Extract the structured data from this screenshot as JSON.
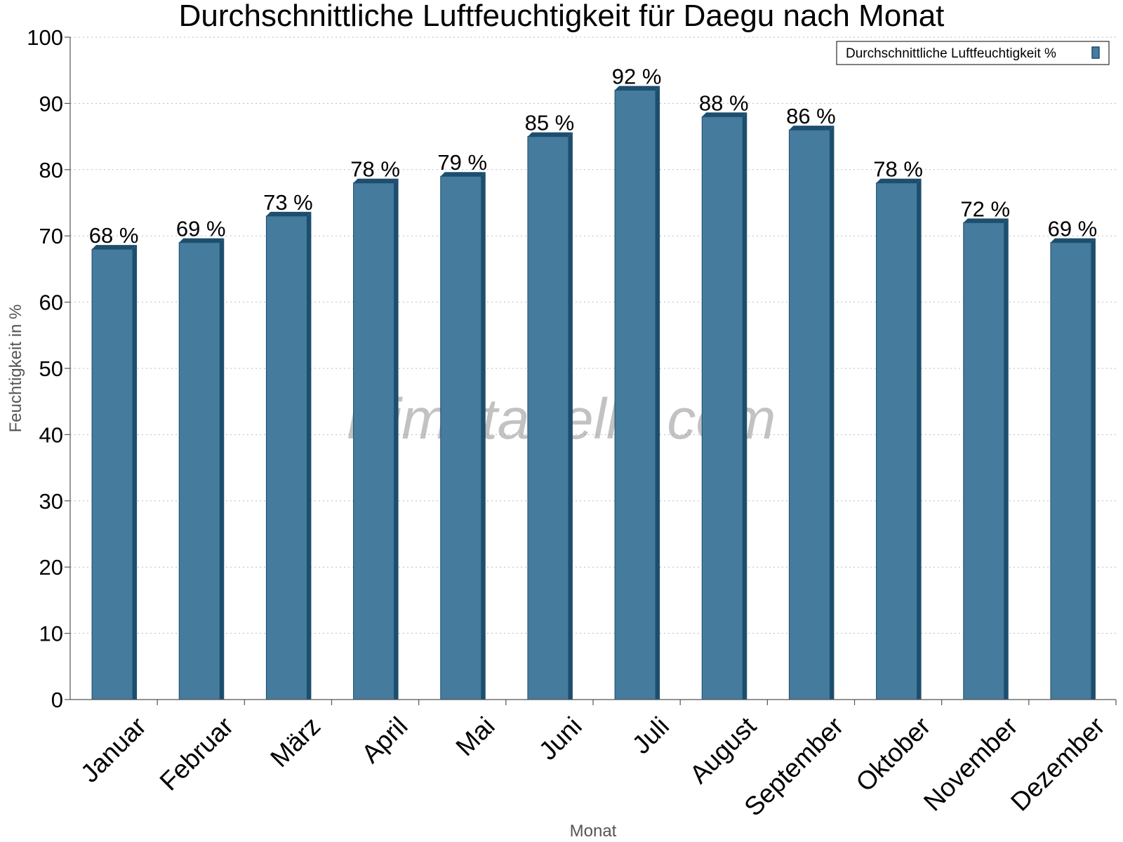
{
  "chart_data": {
    "type": "bar",
    "title": "Durchschnittliche Luftfeuchtigkeit für Daegu nach Monat",
    "xlabel": "Monat",
    "ylabel": "Feuchtigkeit in %",
    "ylim": [
      0,
      100
    ],
    "yticks": [
      0,
      10,
      20,
      30,
      40,
      50,
      60,
      70,
      80,
      90,
      100
    ],
    "grid": true,
    "legend_position": "top-right",
    "categories": [
      "Januar",
      "Februar",
      "März",
      "April",
      "Mai",
      "Juni",
      "Juli",
      "August",
      "September",
      "Oktober",
      "November",
      "Dezember"
    ],
    "series": [
      {
        "name": "Durchschnittliche Luftfeuchtigkeit %",
        "values": [
          68,
          69,
          73,
          78,
          79,
          85,
          92,
          88,
          86,
          78,
          72,
          69
        ],
        "labels": [
          "68 %",
          "69 %",
          "73 %",
          "78 %",
          "79 %",
          "85 %",
          "92 %",
          "88 %",
          "86 %",
          "78 %",
          "72 %",
          "69 %"
        ],
        "color": "#457b9d",
        "edge_color": "#1d4e6e"
      }
    ],
    "watermark": "klimatabelle.com"
  }
}
